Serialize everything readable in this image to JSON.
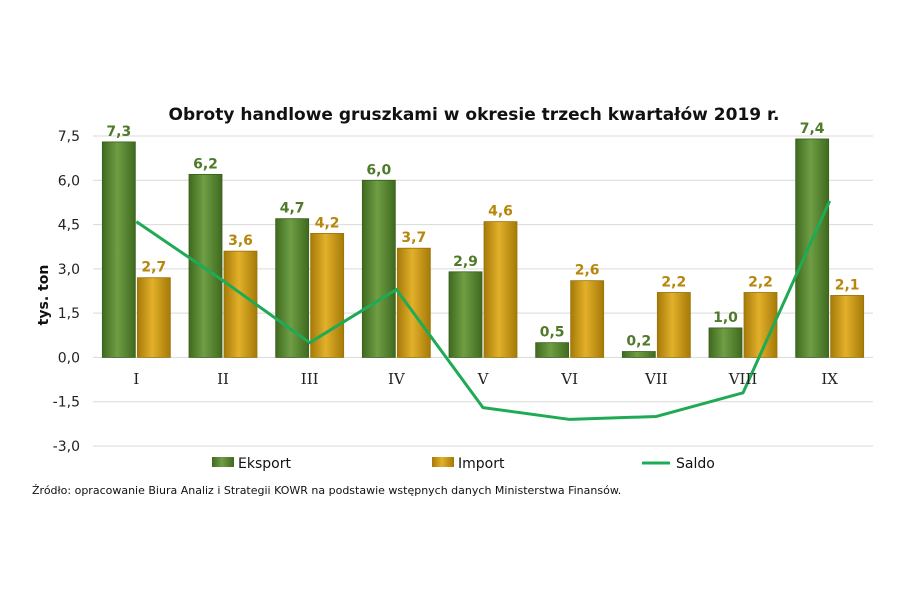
{
  "chart_data": {
    "type": "bar",
    "title": "Obroty handlowe gruszkami w okresie trzech kwartałów 2019 r.",
    "ylabel": "tys. ton",
    "xlabel": "",
    "categories": [
      "I",
      "II",
      "III",
      "IV",
      "V",
      "VI",
      "VII",
      "VIII",
      "IX"
    ],
    "y_ticks": [
      "7,5",
      "6,0",
      "4,5",
      "3,0",
      "1,5",
      "0,0",
      "-1,5",
      "-3,0"
    ],
    "y_tick_values": [
      7.5,
      6.0,
      4.5,
      3.0,
      1.5,
      0.0,
      -1.5,
      -3.0
    ],
    "ylim": [
      -3.0,
      7.5
    ],
    "grid": true,
    "legend_position": "bottom",
    "series": [
      {
        "name": "Eksport",
        "kind": "bar",
        "color": "#5e8f35",
        "values": [
          7.3,
          6.2,
          4.7,
          6.0,
          2.9,
          0.5,
          0.2,
          1.0,
          7.4
        ],
        "labels": [
          "7,3",
          "6,2",
          "4,7",
          "6,0",
          "2,9",
          "0,5",
          "0,2",
          "1,0",
          "7,4"
        ]
      },
      {
        "name": "Import",
        "kind": "bar",
        "color": "#d4a017",
        "values": [
          2.7,
          3.6,
          4.2,
          3.7,
          4.6,
          2.6,
          2.2,
          2.2,
          2.1
        ],
        "labels": [
          "2,7",
          "3,6",
          "4,2",
          "3,7",
          "4,6",
          "2,6",
          "2,2",
          "2,2",
          "2,1"
        ]
      },
      {
        "name": "Saldo",
        "kind": "line",
        "color": "#1faa55",
        "values": [
          4.6,
          2.6,
          0.5,
          2.3,
          -1.7,
          -2.1,
          -2.0,
          -1.2,
          5.3
        ]
      }
    ]
  },
  "source_text": "Źródło: opracowanie Biura Analiz i Strategii KOWR na podstawie wstępnych danych Ministerstwa Finansów."
}
